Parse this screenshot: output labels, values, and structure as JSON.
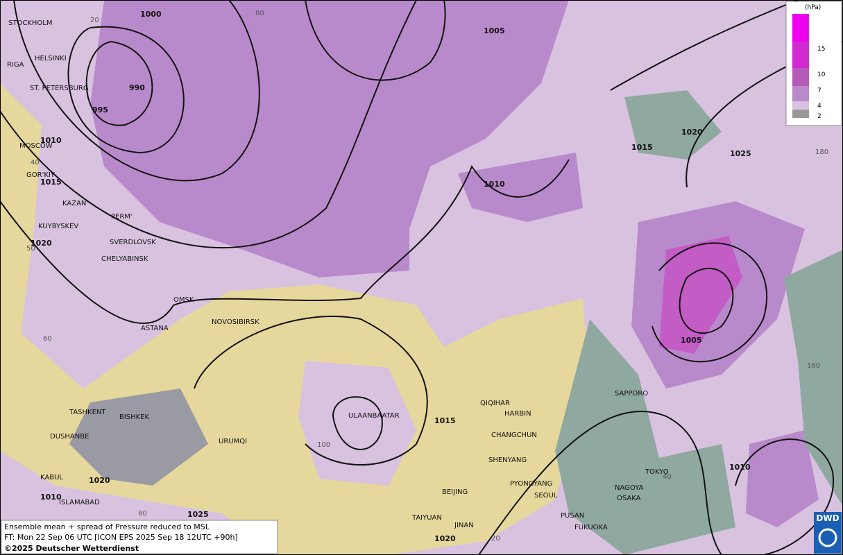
{
  "legend": {
    "unit": "(hPa)",
    "levels": [
      15,
      10,
      7,
      4,
      2
    ]
  },
  "cities": [
    "STOCKHOLM",
    "HELSINKI",
    "RIGA",
    "ST. PETERSBURG",
    "MOSCOW",
    "GOR'KIY",
    "KAZAN'",
    "KUYBYSKEV",
    "PERM'",
    "SVERDLOVSK",
    "CHELYABINSK",
    "OMSK",
    "ASTANA",
    "NOVOSIBIRSK",
    "TASHKENT",
    "BISHKEK",
    "DUSHANBE",
    "URUMQI",
    "KABUL",
    "ISLAMABAD",
    "ULAANBAATAR",
    "QIQIHAR",
    "HARBIN",
    "CHANGCHUN",
    "SHENYANG",
    "PYONGYANG",
    "SEOUL",
    "BEIJING",
    "TAIYUAN",
    "JINAN",
    "PUSAN",
    "FUKUOKA",
    "SAPPORO",
    "TOKYO",
    "NAGOYA",
    "OSAKA"
  ],
  "isobar_labels": [
    1000,
    1005,
    990,
    995,
    1010,
    1015,
    1020,
    1010,
    1015,
    1020,
    1025,
    1005,
    1015,
    1020,
    1010,
    1025,
    1020,
    1010
  ],
  "grid_labels": [
    80,
    20,
    40,
    50,
    60,
    100,
    80,
    20,
    180,
    160,
    40
  ],
  "footer": [
    "Ensemble mean + spread of Pressure reduced to MSL",
    "FT: Mon 22 Sep 06 UTC [ICON EPS 2025 Sep 18 12UTC +90h]",
    "©2025 Deutscher Wetterdienst"
  ],
  "logo": "DWD"
}
